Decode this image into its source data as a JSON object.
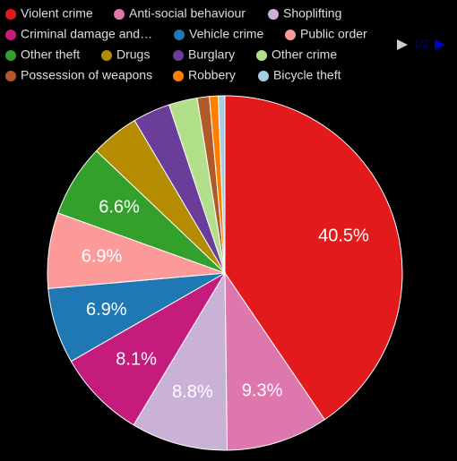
{
  "chart_data": {
    "type": "pie",
    "categories": [
      "Violent crime",
      "Anti-social behaviour",
      "Shoplifting",
      "Criminal damage and…",
      "Vehicle crime",
      "Public order",
      "Other theft",
      "Drugs",
      "Burglary",
      "Other crime",
      "Possession of weapons",
      "Robbery",
      "Bicycle theft"
    ],
    "series": [
      {
        "values": [
          40.5,
          9.3,
          8.8,
          8.1,
          6.9,
          6.9,
          6.6,
          4.4,
          3.4,
          2.6,
          1.1,
          0.8,
          0.6
        ],
        "value_labels": [
          "40.5%",
          "9.3%",
          "8.8%",
          "8.1%",
          "6.9%",
          "6.9%",
          "6.6%",
          null,
          null,
          null,
          null,
          null,
          null
        ],
        "colors": [
          "#e31a1c",
          "#de77ae",
          "#c9b2d6",
          "#c51b7d",
          "#1f78b4",
          "#fb9a99",
          "#33a02c",
          "#b58b00",
          "#6a3d9a",
          "#b2df8a",
          "#b15928",
          "#ff7f00",
          "#a6cee3"
        ]
      }
    ],
    "legend_page": "1/2"
  }
}
